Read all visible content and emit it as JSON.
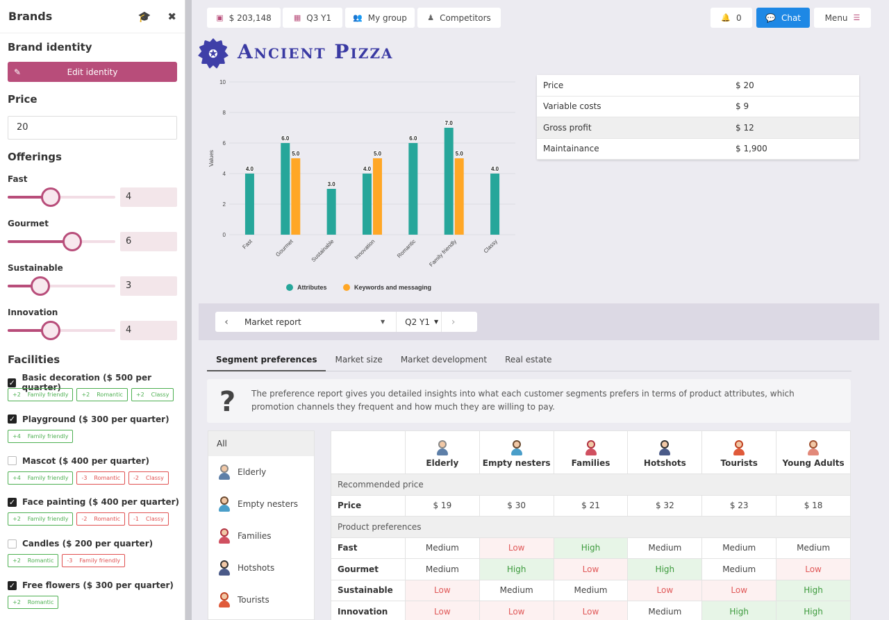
{
  "sidebar": {
    "title": "Brands",
    "brand_identity_heading": "Brand identity",
    "edit_identity_label": "Edit identity",
    "price_heading": "Price",
    "price_value": "20",
    "offerings_heading": "Offerings",
    "sliders": [
      {
        "label": "Fast",
        "value": "4",
        "level": 0.4
      },
      {
        "label": "Gourmet",
        "value": "6",
        "level": 0.6
      },
      {
        "label": "Sustainable",
        "value": "3",
        "level": 0.3
      },
      {
        "label": "Innovation",
        "value": "4",
        "level": 0.4
      }
    ],
    "facilities_heading": "Facilities",
    "facilities": [
      {
        "label": "Basic decoration ($ 500 per quarter)",
        "checked": true,
        "tags": [
          {
            "n": "+2",
            "t": "Family friendly",
            "s": "pos"
          },
          {
            "n": "+2",
            "t": "Romantic",
            "s": "pos"
          },
          {
            "n": "+2",
            "t": "Classy",
            "s": "pos"
          }
        ]
      },
      {
        "label": "Playground ($ 300 per quarter)",
        "checked": true,
        "tags": [
          {
            "n": "+4",
            "t": "Family friendly",
            "s": "pos"
          }
        ]
      },
      {
        "label": "Mascot ($ 400 per quarter)",
        "checked": false,
        "tags": [
          {
            "n": "+4",
            "t": "Family friendly",
            "s": "pos"
          },
          {
            "n": "-3",
            "t": "Romantic",
            "s": "neg"
          },
          {
            "n": "-2",
            "t": "Classy",
            "s": "neg"
          }
        ]
      },
      {
        "label": "Face painting ($ 400 per quarter)",
        "checked": true,
        "tags": [
          {
            "n": "+2",
            "t": "Family friendly",
            "s": "pos"
          },
          {
            "n": "-2",
            "t": "Romantic",
            "s": "neg"
          },
          {
            "n": "-1",
            "t": "Classy",
            "s": "neg"
          }
        ]
      },
      {
        "label": "Candles ($ 200 per quarter)",
        "checked": false,
        "tags": [
          {
            "n": "+2",
            "t": "Romantic",
            "s": "pos"
          },
          {
            "n": "-3",
            "t": "Family friendly",
            "s": "neg"
          }
        ]
      },
      {
        "label": "Free flowers ($ 300 per quarter)",
        "checked": true,
        "tags": [
          {
            "n": "+2",
            "t": "Romantic",
            "s": "pos"
          }
        ]
      }
    ]
  },
  "topbar": {
    "cash": "$ 203,148",
    "period": "Q3 Y1",
    "group": "My group",
    "competitors": "Competitors",
    "notifications": "0",
    "chat": "Chat",
    "menu": "Menu"
  },
  "brand": {
    "name": "Ancient Pizza"
  },
  "chart_data": {
    "type": "bar",
    "categories": [
      "Fast",
      "Gourmet",
      "Sustainable",
      "Innovation",
      "Romantic",
      "Family friendly",
      "Classy"
    ],
    "series": [
      {
        "name": "Attributes",
        "color": "#26a69a",
        "values": [
          4.0,
          6.0,
          3.0,
          4.0,
          6.0,
          7.0,
          4.0
        ]
      },
      {
        "name": "Keywords and messaging",
        "color": "#ffa726",
        "values": [
          null,
          5.0,
          null,
          5.0,
          null,
          5.0,
          null
        ]
      }
    ],
    "ylabel": "Values",
    "xlabel": "",
    "ylim": [
      0,
      10
    ],
    "yticks": [
      "0",
      "2",
      "4",
      "6",
      "8",
      "10"
    ],
    "grid": true,
    "legend": "bottom"
  },
  "financials": [
    {
      "label": "Price",
      "value": "$ 20"
    },
    {
      "label": "Variable costs",
      "value": "$ 9"
    },
    {
      "label": "Gross profit",
      "value": "$ 12"
    },
    {
      "label": "Maintainance",
      "value": "$ 1,900"
    }
  ],
  "report_nav": {
    "title": "Market report",
    "period": "Q2 Y1"
  },
  "tabs": [
    "Segment preferences",
    "Market size",
    "Market development",
    "Real estate"
  ],
  "info_text": "The preference report gives you detailed insights into what each customer segments prefers in terms of product attributes, which promotion channels they frequent and how much they are willing to pay.",
  "segment_list": {
    "all": "All",
    "items": [
      "Elderly",
      "Empty nesters",
      "Families",
      "Hotshots",
      "Tourists"
    ]
  },
  "pref_table": {
    "segments": [
      "Elderly",
      "Empty nesters",
      "Families",
      "Hotshots",
      "Tourists",
      "Young Adults"
    ],
    "recommended_price_heading": "Recommended price",
    "price_row": {
      "label": "Price",
      "values": [
        "$ 19",
        "$ 30",
        "$ 21",
        "$ 32",
        "$ 23",
        "$ 18"
      ]
    },
    "product_pref_heading": "Product preferences",
    "rows": [
      {
        "label": "Fast",
        "values": [
          "Medium",
          "Low",
          "High",
          "Medium",
          "Medium",
          "Medium"
        ]
      },
      {
        "label": "Gourmet",
        "values": [
          "Medium",
          "High",
          "Low",
          "High",
          "Medium",
          "Low"
        ]
      },
      {
        "label": "Sustainable",
        "values": [
          "Low",
          "Medium",
          "Medium",
          "Low",
          "Low",
          "High"
        ]
      },
      {
        "label": "Innovation",
        "values": [
          "Low",
          "Low",
          "Low",
          "Medium",
          "High",
          "High"
        ]
      }
    ]
  }
}
